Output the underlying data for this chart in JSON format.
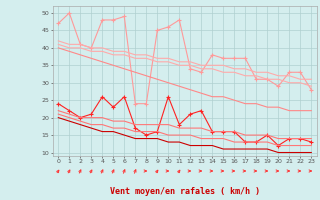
{
  "x": [
    0,
    1,
    2,
    3,
    4,
    5,
    6,
    7,
    8,
    9,
    10,
    11,
    12,
    13,
    14,
    15,
    16,
    17,
    18,
    19,
    20,
    21,
    22,
    23
  ],
  "background_color": "#d4eeee",
  "grid_color": "#b0d0d0",
  "xlabel": "Vent moyen/en rafales ( km/h )",
  "ylim": [
    9,
    52
  ],
  "xlim": [
    -0.5,
    23.5
  ],
  "yticks": [
    10,
    15,
    20,
    25,
    30,
    35,
    40,
    45,
    50
  ],
  "series": [
    {
      "data": [
        47,
        50,
        41,
        40,
        48,
        48,
        49,
        24,
        24,
        45,
        46,
        48,
        34,
        33,
        38,
        37,
        37,
        37,
        31,
        31,
        29,
        33,
        33,
        28
      ],
      "color": "#ff9999",
      "marker": "+",
      "markersize": 3,
      "linewidth": 0.8,
      "linestyle": "-"
    },
    {
      "data": [
        42,
        41,
        41,
        40,
        40,
        39,
        39,
        38,
        38,
        37,
        37,
        36,
        36,
        35,
        35,
        35,
        34,
        34,
        33,
        33,
        32,
        32,
        31,
        31
      ],
      "color": "#ffaaaa",
      "marker": null,
      "markersize": 0,
      "linewidth": 0.8,
      "linestyle": "-"
    },
    {
      "data": [
        41,
        40,
        40,
        39,
        39,
        38,
        38,
        37,
        37,
        36,
        36,
        35,
        35,
        34,
        34,
        33,
        33,
        32,
        32,
        31,
        31,
        30,
        30,
        29
      ],
      "color": "#ffaaaa",
      "marker": null,
      "markersize": 0,
      "linewidth": 0.8,
      "linestyle": "-"
    },
    {
      "data": [
        40,
        39,
        38,
        37,
        36,
        35,
        34,
        33,
        32,
        31,
        30,
        29,
        28,
        27,
        26,
        26,
        25,
        24,
        24,
        23,
        23,
        22,
        22,
        22
      ],
      "color": "#ff8888",
      "marker": null,
      "markersize": 0,
      "linewidth": 0.8,
      "linestyle": "-"
    },
    {
      "data": [
        24,
        22,
        20,
        21,
        26,
        23,
        26,
        17,
        15,
        16,
        26,
        18,
        21,
        22,
        16,
        16,
        16,
        13,
        13,
        15,
        12,
        14,
        14,
        13
      ],
      "color": "#ff2222",
      "marker": "+",
      "markersize": 3,
      "linewidth": 0.8,
      "linestyle": "-"
    },
    {
      "data": [
        22,
        21,
        20,
        20,
        20,
        19,
        19,
        18,
        18,
        18,
        18,
        17,
        17,
        17,
        16,
        16,
        16,
        15,
        15,
        15,
        14,
        14,
        14,
        14
      ],
      "color": "#ff7777",
      "marker": null,
      "markersize": 0,
      "linewidth": 0.8,
      "linestyle": "-"
    },
    {
      "data": [
        21,
        20,
        19,
        18,
        18,
        17,
        17,
        16,
        16,
        16,
        15,
        15,
        15,
        14,
        14,
        14,
        13,
        13,
        13,
        13,
        12,
        12,
        12,
        12
      ],
      "color": "#ff7777",
      "marker": null,
      "markersize": 0,
      "linewidth": 0.8,
      "linestyle": "-"
    },
    {
      "data": [
        20,
        19,
        18,
        17,
        16,
        16,
        15,
        14,
        14,
        14,
        13,
        13,
        12,
        12,
        12,
        11,
        11,
        11,
        11,
        11,
        10,
        10,
        10,
        10
      ],
      "color": "#cc0000",
      "marker": null,
      "markersize": 0,
      "linewidth": 0.8,
      "linestyle": "-"
    }
  ],
  "arrow_angles": [
    45,
    50,
    55,
    50,
    55,
    55,
    60,
    60,
    0,
    45,
    0,
    45,
    0,
    0,
    0,
    0,
    0,
    0,
    0,
    0,
    0,
    0,
    0,
    0
  ]
}
